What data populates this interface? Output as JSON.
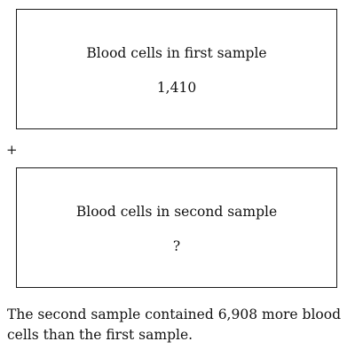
{
  "first_box": {
    "label": "Blood cells in first sample",
    "value": "1,410"
  },
  "operator": "+",
  "second_box": {
    "label": "Blood cells in second sample",
    "value": "?"
  },
  "statement": "The second sample contained 6,908 more blood cells than the first sample."
}
